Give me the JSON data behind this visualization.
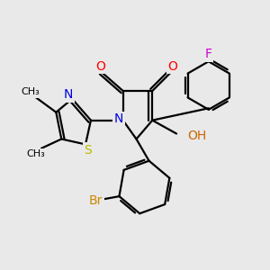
{
  "background_color": "#e9e9e9",
  "atoms": {
    "N": "#0000dd",
    "O": "#ff0000",
    "OH": "#cc6600",
    "S": "#bbbb00",
    "F": "#cc00cc",
    "Br": "#cc8800"
  },
  "lw": 1.6
}
